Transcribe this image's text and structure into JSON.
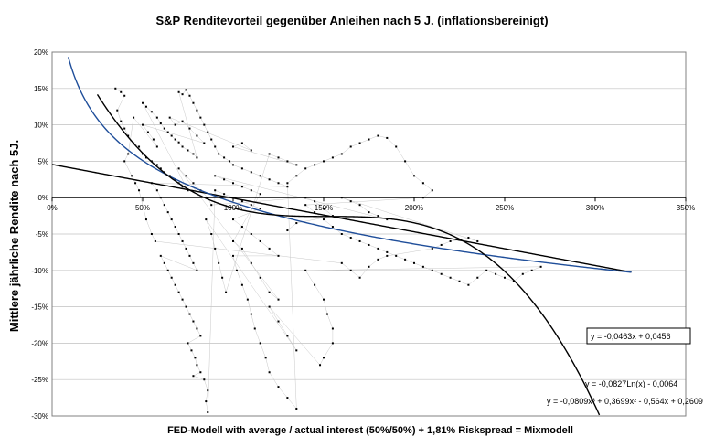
{
  "chart_data": {
    "type": "scatter",
    "title": "S&P Renditevorteil gegenüber Anleihen nach 5 J. (inflationsbereinigt)",
    "xlabel": "FED-Modell with average / actual interest (50%/50%) + 1,81% Riskspread = Mixmodell",
    "ylabel": "Mittlere jährliche Rendite nach 5J.",
    "xlim": [
      0,
      3.5
    ],
    "ylim": [
      -0.3,
      0.2
    ],
    "x_ticks": [
      {
        "v": 0,
        "label": "0%"
      },
      {
        "v": 0.5,
        "label": "50%"
      },
      {
        "v": 1.0,
        "label": "100%"
      },
      {
        "v": 1.5,
        "label": "150%"
      },
      {
        "v": 2.0,
        "label": "200%"
      },
      {
        "v": 2.5,
        "label": "250%"
      },
      {
        "v": 3.0,
        "label": "300%"
      },
      {
        "v": 3.5,
        "label": "350%"
      }
    ],
    "y_ticks": [
      {
        "v": 0.2,
        "label": "20%"
      },
      {
        "v": 0.15,
        "label": "15%"
      },
      {
        "v": 0.1,
        "label": "10%"
      },
      {
        "v": 0.05,
        "label": "5%"
      },
      {
        "v": 0.0,
        "label": "0%"
      },
      {
        "v": -0.05,
        "label": "-5%"
      },
      {
        "v": -0.1,
        "label": "-10%"
      },
      {
        "v": -0.15,
        "label": "-15%"
      },
      {
        "v": -0.2,
        "label": "-20%"
      },
      {
        "v": -0.25,
        "label": "-25%"
      },
      {
        "v": -0.3,
        "label": "-30%"
      }
    ],
    "grid": "horizontal",
    "scatter_points": [
      [
        0.35,
        0.15
      ],
      [
        0.38,
        0.145
      ],
      [
        0.4,
        0.14
      ],
      [
        0.36,
        0.12
      ],
      [
        0.38,
        0.105
      ],
      [
        0.4,
        0.095
      ],
      [
        0.42,
        0.085
      ],
      [
        0.45,
        0.075
      ],
      [
        0.48,
        0.07
      ],
      [
        0.5,
        0.06
      ],
      [
        0.52,
        0.055
      ],
      [
        0.55,
        0.05
      ],
      [
        0.58,
        0.045
      ],
      [
        0.6,
        0.04
      ],
      [
        0.62,
        0.035
      ],
      [
        0.65,
        0.03
      ],
      [
        0.68,
        0.025
      ],
      [
        0.7,
        0.02
      ],
      [
        0.72,
        0.015
      ],
      [
        0.75,
        0.01
      ],
      [
        0.5,
        0.13
      ],
      [
        0.52,
        0.125
      ],
      [
        0.55,
        0.118
      ],
      [
        0.58,
        0.11
      ],
      [
        0.6,
        0.102
      ],
      [
        0.62,
        0.095
      ],
      [
        0.64,
        0.09
      ],
      [
        0.66,
        0.085
      ],
      [
        0.68,
        0.08
      ],
      [
        0.7,
        0.076
      ],
      [
        0.72,
        0.07
      ],
      [
        0.75,
        0.065
      ],
      [
        0.78,
        0.06
      ],
      [
        0.8,
        0.055
      ],
      [
        0.7,
        0.145
      ],
      [
        0.72,
        0.142
      ],
      [
        0.74,
        0.148
      ],
      [
        0.76,
        0.14
      ],
      [
        0.78,
        0.13
      ],
      [
        0.8,
        0.12
      ],
      [
        0.82,
        0.11
      ],
      [
        0.84,
        0.1
      ],
      [
        0.86,
        0.09
      ],
      [
        0.88,
        0.08
      ],
      [
        0.9,
        0.07
      ],
      [
        0.92,
        0.06
      ],
      [
        0.95,
        0.055
      ],
      [
        0.98,
        0.05
      ],
      [
        1.0,
        0.045
      ],
      [
        1.05,
        0.04
      ],
      [
        1.1,
        0.035
      ],
      [
        1.15,
        0.03
      ],
      [
        1.2,
        0.025
      ],
      [
        1.25,
        0.02
      ],
      [
        1.3,
        0.015
      ],
      [
        0.55,
        0.02
      ],
      [
        0.58,
        0.01
      ],
      [
        0.6,
        0.0
      ],
      [
        0.62,
        -0.01
      ],
      [
        0.64,
        -0.02
      ],
      [
        0.66,
        -0.03
      ],
      [
        0.68,
        -0.04
      ],
      [
        0.7,
        -0.05
      ],
      [
        0.72,
        -0.06
      ],
      [
        0.74,
        -0.07
      ],
      [
        0.76,
        -0.08
      ],
      [
        0.78,
        -0.09
      ],
      [
        0.8,
        -0.1
      ],
      [
        0.6,
        -0.08
      ],
      [
        0.62,
        -0.09
      ],
      [
        0.64,
        -0.1
      ],
      [
        0.66,
        -0.11
      ],
      [
        0.68,
        -0.12
      ],
      [
        0.7,
        -0.13
      ],
      [
        0.72,
        -0.14
      ],
      [
        0.74,
        -0.15
      ],
      [
        0.76,
        -0.16
      ],
      [
        0.78,
        -0.17
      ],
      [
        0.8,
        -0.18
      ],
      [
        0.82,
        -0.19
      ],
      [
        0.75,
        -0.2
      ],
      [
        0.77,
        -0.21
      ],
      [
        0.79,
        -0.22
      ],
      [
        0.8,
        -0.23
      ],
      [
        0.82,
        -0.24
      ],
      [
        0.78,
        -0.245
      ],
      [
        0.84,
        -0.25
      ],
      [
        0.86,
        -0.265
      ],
      [
        0.85,
        -0.28
      ],
      [
        0.86,
        -0.295
      ],
      [
        0.9,
        0.01
      ],
      [
        0.95,
        0.005
      ],
      [
        1.0,
        0.0
      ],
      [
        1.05,
        -0.005
      ],
      [
        1.1,
        -0.01
      ],
      [
        1.15,
        -0.015
      ],
      [
        1.0,
        -0.03
      ],
      [
        1.05,
        -0.04
      ],
      [
        1.1,
        -0.05
      ],
      [
        1.15,
        -0.06
      ],
      [
        1.2,
        -0.07
      ],
      [
        1.25,
        -0.08
      ],
      [
        1.0,
        -0.08
      ],
      [
        1.02,
        -0.1
      ],
      [
        1.05,
        -0.12
      ],
      [
        1.08,
        -0.14
      ],
      [
        1.1,
        -0.16
      ],
      [
        1.12,
        -0.18
      ],
      [
        1.15,
        -0.2
      ],
      [
        1.18,
        -0.22
      ],
      [
        1.2,
        -0.24
      ],
      [
        1.25,
        -0.26
      ],
      [
        1.3,
        -0.275
      ],
      [
        1.35,
        -0.29
      ],
      [
        1.3,
        0.02
      ],
      [
        1.35,
        0.03
      ],
      [
        1.4,
        0.04
      ],
      [
        1.45,
        0.045
      ],
      [
        1.5,
        0.05
      ],
      [
        1.55,
        0.055
      ],
      [
        1.6,
        0.06
      ],
      [
        1.65,
        0.07
      ],
      [
        1.7,
        0.075
      ],
      [
        1.75,
        0.08
      ],
      [
        1.8,
        0.085
      ],
      [
        1.85,
        0.082
      ],
      [
        1.9,
        0.07
      ],
      [
        1.95,
        0.05
      ],
      [
        2.0,
        0.03
      ],
      [
        2.05,
        0.02
      ],
      [
        2.1,
        0.01
      ],
      [
        2.05,
        0.0
      ],
      [
        1.4,
        -0.01
      ],
      [
        1.45,
        -0.02
      ],
      [
        1.5,
        -0.03
      ],
      [
        1.55,
        -0.04
      ],
      [
        1.6,
        -0.05
      ],
      [
        1.65,
        -0.055
      ],
      [
        1.7,
        -0.06
      ],
      [
        1.75,
        -0.065
      ],
      [
        1.8,
        -0.07
      ],
      [
        1.85,
        -0.075
      ],
      [
        1.9,
        -0.08
      ],
      [
        1.95,
        -0.085
      ],
      [
        2.0,
        -0.09
      ],
      [
        2.05,
        -0.095
      ],
      [
        2.1,
        -0.1
      ],
      [
        2.15,
        -0.105
      ],
      [
        2.2,
        -0.11
      ],
      [
        2.25,
        -0.115
      ],
      [
        2.3,
        -0.12
      ],
      [
        2.35,
        -0.11
      ],
      [
        2.4,
        -0.1
      ],
      [
        2.45,
        -0.105
      ],
      [
        2.5,
        -0.11
      ],
      [
        2.55,
        -0.115
      ],
      [
        2.6,
        -0.105
      ],
      [
        2.65,
        -0.1
      ],
      [
        2.7,
        -0.095
      ],
      [
        1.4,
        -0.1
      ],
      [
        1.45,
        -0.12
      ],
      [
        1.5,
        -0.14
      ],
      [
        1.52,
        -0.16
      ],
      [
        1.55,
        -0.18
      ],
      [
        1.55,
        -0.2
      ],
      [
        1.5,
        -0.22
      ],
      [
        1.48,
        -0.23
      ],
      [
        1.2,
        -0.15
      ],
      [
        1.25,
        -0.17
      ],
      [
        1.3,
        -0.19
      ],
      [
        1.35,
        -0.21
      ],
      [
        0.85,
        -0.03
      ],
      [
        0.88,
        -0.05
      ],
      [
        0.9,
        -0.07
      ],
      [
        0.92,
        -0.09
      ],
      [
        0.94,
        -0.11
      ],
      [
        0.96,
        -0.13
      ],
      [
        1.2,
        0.06
      ],
      [
        1.25,
        0.055
      ],
      [
        1.3,
        0.05
      ],
      [
        1.35,
        0.045
      ],
      [
        1.0,
        0.07
      ],
      [
        1.05,
        0.075
      ],
      [
        1.1,
        0.065
      ],
      [
        0.65,
        0.11
      ],
      [
        0.68,
        0.1
      ],
      [
        0.72,
        0.105
      ],
      [
        0.76,
        0.095
      ],
      [
        0.8,
        0.085
      ],
      [
        0.84,
        0.075
      ],
      [
        0.5,
        0.1
      ],
      [
        0.53,
        0.09
      ],
      [
        0.56,
        0.08
      ],
      [
        0.58,
        0.07
      ],
      [
        0.45,
        0.11
      ],
      [
        0.42,
        0.06
      ],
      [
        0.4,
        0.05
      ],
      [
        0.44,
        0.03
      ],
      [
        0.46,
        0.02
      ],
      [
        0.48,
        0.01
      ],
      [
        0.52,
        -0.03
      ],
      [
        0.55,
        -0.05
      ],
      [
        0.57,
        -0.06
      ],
      [
        1.6,
        -0.09
      ],
      [
        1.65,
        -0.1
      ],
      [
        1.7,
        -0.11
      ],
      [
        1.75,
        -0.095
      ],
      [
        1.8,
        -0.085
      ],
      [
        1.85,
        -0.08
      ],
      [
        2.1,
        -0.07
      ],
      [
        2.15,
        -0.065
      ],
      [
        2.2,
        -0.06
      ],
      [
        2.25,
        -0.058
      ],
      [
        2.3,
        -0.055
      ],
      [
        2.35,
        -0.06
      ],
      [
        1.6,
        0.0
      ],
      [
        1.65,
        -0.005
      ],
      [
        1.7,
        -0.01
      ],
      [
        1.75,
        -0.02
      ],
      [
        1.8,
        -0.025
      ],
      [
        1.85,
        -0.03
      ],
      [
        0.9,
        0.03
      ],
      [
        0.95,
        0.025
      ],
      [
        1.0,
        0.02
      ],
      [
        1.05,
        0.015
      ],
      [
        1.1,
        0.01
      ],
      [
        1.15,
        0.005
      ],
      [
        1.0,
        -0.06
      ],
      [
        1.05,
        -0.07
      ],
      [
        1.1,
        -0.09
      ],
      [
        1.15,
        -0.11
      ],
      [
        1.2,
        -0.13
      ],
      [
        1.25,
        -0.14
      ],
      [
        0.7,
        0.04
      ],
      [
        0.74,
        0.03
      ],
      [
        0.78,
        0.02
      ],
      [
        0.82,
        0.01
      ],
      [
        0.86,
        0.0
      ],
      [
        0.88,
        -0.01
      ],
      [
        1.4,
        0.0
      ],
      [
        1.45,
        -0.005
      ],
      [
        1.5,
        -0.015
      ],
      [
        1.55,
        -0.025
      ],
      [
        1.35,
        -0.035
      ],
      [
        1.3,
        -0.045
      ]
    ],
    "trendlines": [
      {
        "name": "linear",
        "type": "linear",
        "color": "#000000",
        "equation": "y = -0,0463x + 0,0456"
      },
      {
        "name": "logarithmic",
        "type": "log",
        "color": "#1f4e9a",
        "equation": "y = -0,0827Ln(x) - 0,0064"
      },
      {
        "name": "polynomial",
        "type": "poly3",
        "color": "#000000",
        "equation": "y = -0,0809x³ + 0,3699x² - 0,564x + 0,2609"
      }
    ]
  }
}
